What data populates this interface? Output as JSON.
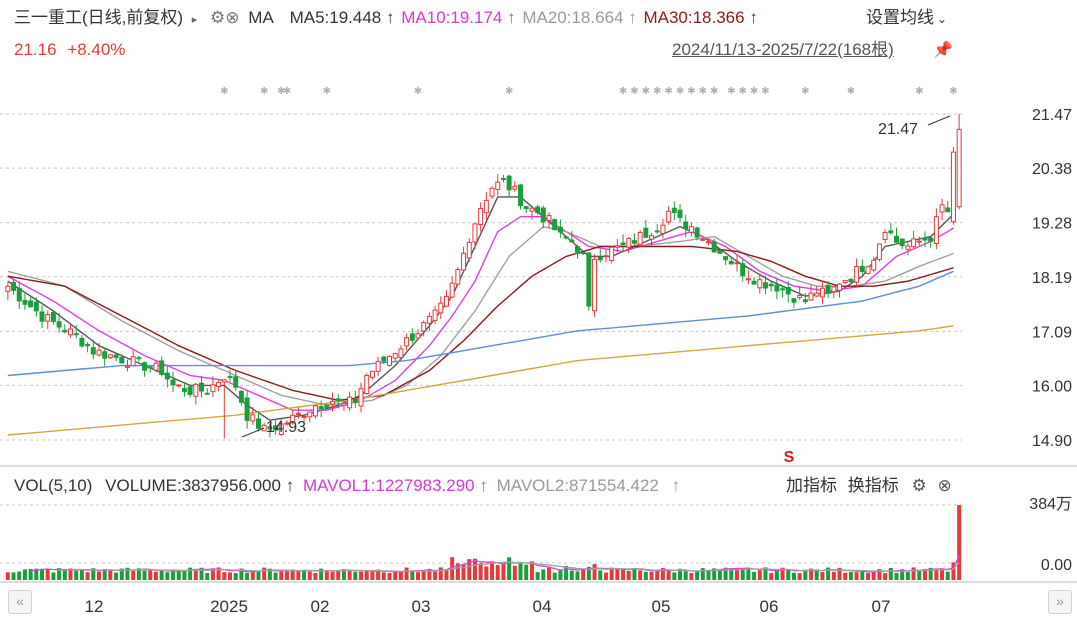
{
  "header": {
    "stock_name": "三一重工",
    "mode": "(日线,前复权)",
    "indicator": "MA",
    "ma5": "MA5:19.448",
    "ma10": "MA10:19.174",
    "ma20": "MA20:18.664",
    "ma30": "MA30:18.366",
    "arrow": "↑",
    "settings_label": "设置均线",
    "last_price": "21.16",
    "change_pct": "+8.40%",
    "date_range": "2024/11/13-2025/7/22(168根)"
  },
  "volume_header": {
    "vol_label": "VOL(5,10)",
    "volume": "VOLUME:3837956.000",
    "mavol1": "MAVOL1:1227983.290",
    "mavol2": "MAVOL2:871554.422",
    "arrow": "↑",
    "add_indicator": "加指标",
    "switch_indicator": "换指标"
  },
  "colors": {
    "up": "#e8383a",
    "down": "#1a9e3c",
    "ma5": "#555555",
    "ma10": "#e040e0",
    "ma20": "#a0a0a0",
    "ma30": "#8b1a1a",
    "ma_long1": "#5b8fd6",
    "ma_long2": "#d4a640",
    "vol_ma1": "#e040e0",
    "vol_ma2": "#a0a0a0"
  },
  "chart_data": [
    {
      "type": "candlestick",
      "title": "三一重工 (日线,前复权)",
      "x_tick_labels": [
        "12",
        "2025",
        "02",
        "03",
        "04",
        "05",
        "06",
        "07"
      ],
      "y_tick_labels": [
        "21.47",
        "20.38",
        "19.28",
        "18.19",
        "17.09",
        "16.00",
        "14.90"
      ],
      "ylim": [
        14.9,
        21.47
      ],
      "high_marker": "21.47",
      "low_marker": "14.93",
      "signal_marker": "S",
      "grid": true,
      "series": [
        {
          "name": "MA5",
          "last": 19.448
        },
        {
          "name": "MA10",
          "last": 19.174
        },
        {
          "name": "MA20",
          "last": 18.664
        },
        {
          "name": "MA30",
          "last": 18.366
        }
      ],
      "close_path": [
        [
          0,
          18.0
        ],
        [
          3,
          17.7
        ],
        [
          6,
          17.4
        ],
        [
          9,
          17.2
        ],
        [
          12,
          17.0
        ],
        [
          15,
          16.7
        ],
        [
          18,
          16.6
        ],
        [
          21,
          16.5
        ],
        [
          24,
          16.4
        ],
        [
          27,
          16.3
        ],
        [
          29,
          16.0
        ],
        [
          32,
          15.9
        ],
        [
          35,
          15.9
        ],
        [
          38,
          16.2
        ],
        [
          40,
          16.0
        ],
        [
          42,
          15.4
        ],
        [
          45,
          15.1
        ],
        [
          48,
          15.2
        ],
        [
          51,
          15.4
        ],
        [
          54,
          15.6
        ],
        [
          57,
          15.7
        ],
        [
          59,
          15.6
        ],
        [
          61,
          15.7
        ],
        [
          63,
          16.2
        ],
        [
          66,
          16.5
        ],
        [
          69,
          16.8
        ],
        [
          72,
          17.1
        ],
        [
          75,
          17.4
        ],
        [
          77,
          17.7
        ],
        [
          79,
          18.3
        ],
        [
          81,
          19.0
        ],
        [
          83,
          19.6
        ],
        [
          85,
          20.0
        ],
        [
          87,
          20.1
        ],
        [
          89,
          19.9
        ],
        [
          91,
          19.6
        ],
        [
          93,
          19.5
        ],
        [
          95,
          19.3
        ],
        [
          97,
          19.0
        ],
        [
          99,
          18.9
        ],
        [
          101,
          18.6
        ],
        [
          102,
          17.5
        ],
        [
          103,
          18.6
        ],
        [
          105,
          18.7
        ],
        [
          108,
          18.8
        ],
        [
          111,
          19.0
        ],
        [
          114,
          19.2
        ],
        [
          116,
          19.5
        ],
        [
          118,
          19.3
        ],
        [
          120,
          19.2
        ],
        [
          123,
          18.9
        ],
        [
          126,
          18.6
        ],
        [
          129,
          18.3
        ],
        [
          132,
          18.1
        ],
        [
          135,
          18.0
        ],
        [
          138,
          17.8
        ],
        [
          140,
          17.7
        ],
        [
          142,
          17.9
        ],
        [
          144,
          17.8
        ],
        [
          146,
          18.1
        ],
        [
          148,
          18.2
        ],
        [
          150,
          18.4
        ],
        [
          152,
          18.6
        ],
        [
          154,
          19.2
        ],
        [
          156,
          18.9
        ],
        [
          158,
          18.8
        ],
        [
          160,
          18.9
        ],
        [
          162,
          19.0
        ],
        [
          164,
          19.6
        ],
        [
          165,
          19.5
        ],
        [
          166,
          20.6
        ],
        [
          167,
          21.16
        ]
      ],
      "ma_lines": {
        "MA5": [
          [
            0,
            18.1
          ],
          [
            8,
            17.5
          ],
          [
            16,
            16.8
          ],
          [
            24,
            16.4
          ],
          [
            32,
            16.0
          ],
          [
            38,
            16.0
          ],
          [
            42,
            15.6
          ],
          [
            46,
            15.3
          ],
          [
            52,
            15.4
          ],
          [
            58,
            15.6
          ],
          [
            62,
            15.8
          ],
          [
            68,
            16.4
          ],
          [
            74,
            17.2
          ],
          [
            78,
            17.8
          ],
          [
            82,
            18.8
          ],
          [
            86,
            19.8
          ],
          [
            90,
            19.8
          ],
          [
            94,
            19.4
          ],
          [
            98,
            19.0
          ],
          [
            102,
            18.6
          ],
          [
            106,
            18.6
          ],
          [
            112,
            18.9
          ],
          [
            118,
            19.2
          ],
          [
            122,
            19.0
          ],
          [
            128,
            18.5
          ],
          [
            134,
            18.1
          ],
          [
            140,
            17.8
          ],
          [
            146,
            17.9
          ],
          [
            150,
            18.2
          ],
          [
            154,
            18.8
          ],
          [
            158,
            18.9
          ],
          [
            162,
            19.0
          ],
          [
            166,
            19.45
          ]
        ],
        "MA10": [
          [
            0,
            18.2
          ],
          [
            8,
            17.7
          ],
          [
            16,
            17.1
          ],
          [
            24,
            16.6
          ],
          [
            32,
            16.2
          ],
          [
            38,
            16.1
          ],
          [
            44,
            15.8
          ],
          [
            50,
            15.5
          ],
          [
            56,
            15.5
          ],
          [
            62,
            15.7
          ],
          [
            68,
            16.1
          ],
          [
            74,
            16.8
          ],
          [
            78,
            17.4
          ],
          [
            82,
            18.1
          ],
          [
            86,
            19.1
          ],
          [
            90,
            19.4
          ],
          [
            94,
            19.4
          ],
          [
            98,
            19.1
          ],
          [
            102,
            18.8
          ],
          [
            108,
            18.7
          ],
          [
            114,
            18.9
          ],
          [
            120,
            19.1
          ],
          [
            126,
            18.8
          ],
          [
            132,
            18.3
          ],
          [
            138,
            18.0
          ],
          [
            144,
            17.9
          ],
          [
            150,
            18.0
          ],
          [
            156,
            18.6
          ],
          [
            162,
            18.9
          ],
          [
            166,
            19.17
          ]
        ],
        "MA20": [
          [
            0,
            18.3
          ],
          [
            10,
            18.0
          ],
          [
            20,
            17.3
          ],
          [
            30,
            16.7
          ],
          [
            40,
            16.2
          ],
          [
            48,
            15.8
          ],
          [
            56,
            15.6
          ],
          [
            64,
            15.7
          ],
          [
            70,
            16.0
          ],
          [
            76,
            16.6
          ],
          [
            82,
            17.5
          ],
          [
            88,
            18.6
          ],
          [
            94,
            19.2
          ],
          [
            98,
            19.1
          ],
          [
            104,
            18.8
          ],
          [
            110,
            18.8
          ],
          [
            118,
            18.9
          ],
          [
            124,
            19.0
          ],
          [
            130,
            18.6
          ],
          [
            136,
            18.2
          ],
          [
            142,
            18.0
          ],
          [
            148,
            18.0
          ],
          [
            154,
            18.1
          ],
          [
            160,
            18.4
          ],
          [
            166,
            18.66
          ]
        ],
        "MA30": [
          [
            0,
            18.2
          ],
          [
            10,
            18.0
          ],
          [
            20,
            17.4
          ],
          [
            30,
            16.8
          ],
          [
            40,
            16.3
          ],
          [
            50,
            15.9
          ],
          [
            58,
            15.7
          ],
          [
            66,
            15.8
          ],
          [
            74,
            16.3
          ],
          [
            80,
            16.9
          ],
          [
            86,
            17.6
          ],
          [
            92,
            18.2
          ],
          [
            98,
            18.6
          ],
          [
            104,
            18.8
          ],
          [
            112,
            18.8
          ],
          [
            120,
            18.8
          ],
          [
            128,
            18.7
          ],
          [
            134,
            18.5
          ],
          [
            140,
            18.2
          ],
          [
            146,
            18.0
          ],
          [
            152,
            18.0
          ],
          [
            158,
            18.1
          ],
          [
            166,
            18.37
          ]
        ],
        "MA_LONG1": [
          [
            0,
            16.2
          ],
          [
            20,
            16.4
          ],
          [
            40,
            16.4
          ],
          [
            60,
            16.4
          ],
          [
            70,
            16.5
          ],
          [
            80,
            16.7
          ],
          [
            90,
            16.9
          ],
          [
            100,
            17.1
          ],
          [
            110,
            17.2
          ],
          [
            120,
            17.3
          ],
          [
            130,
            17.4
          ],
          [
            140,
            17.55
          ],
          [
            150,
            17.7
          ],
          [
            160,
            18.0
          ],
          [
            166,
            18.3
          ]
        ],
        "MA_LONG2": [
          [
            0,
            15.0
          ],
          [
            20,
            15.2
          ],
          [
            40,
            15.4
          ],
          [
            60,
            15.7
          ],
          [
            70,
            15.9
          ],
          [
            80,
            16.1
          ],
          [
            90,
            16.3
          ],
          [
            100,
            16.5
          ],
          [
            110,
            16.6
          ],
          [
            120,
            16.7
          ],
          [
            130,
            16.8
          ],
          [
            140,
            16.9
          ],
          [
            150,
            17.0
          ],
          [
            160,
            17.1
          ],
          [
            166,
            17.2
          ]
        ]
      }
    },
    {
      "type": "bar",
      "title": "VOL(5,10)",
      "y_tick_labels": [
        "384万",
        "0.00"
      ],
      "ylim": [
        0,
        3840000
      ],
      "last_volume": 3837956,
      "series": [
        {
          "name": "MAVOL1",
          "last": 1227983.29
        },
        {
          "name": "MAVOL2",
          "last": 871554.422
        }
      ]
    }
  ]
}
